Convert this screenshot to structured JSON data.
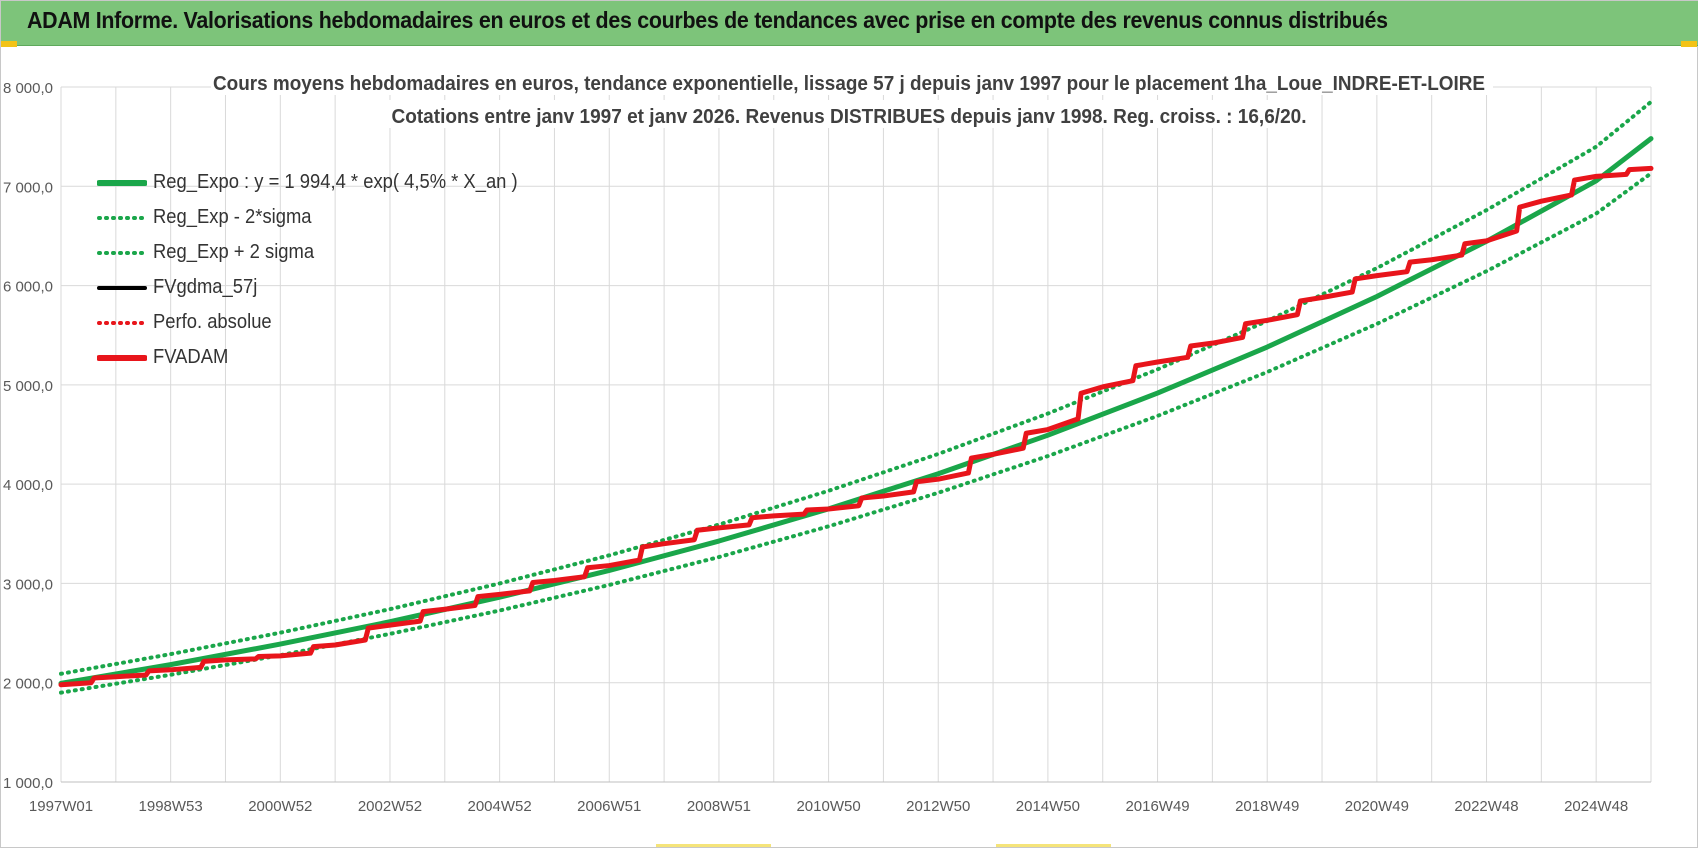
{
  "header": {
    "title": "ADAM Informe. Valorisations hebdomadaires en euros et des courbes de tendances avec prise en compte des revenus connus distribués"
  },
  "chart_data": {
    "type": "line",
    "title": "Cours moyens hebdomadaires en euros, tendance exponentielle, lissage 57 j depuis janv 1997 pour le placement 1ha_Loue_INDRE-ET-LOIRE",
    "subtitle": "Cotations entre janv 1997 et janv 2026. Revenus DISTRIBUES depuis janv 1998. Reg. croiss. : 16,6/20.",
    "xlabel": "",
    "ylabel": "",
    "x_ticks": [
      "1997W01",
      "1998W53",
      "2000W52",
      "2002W52",
      "2004W52",
      "2006W51",
      "2008W51",
      "2010W50",
      "2012W50",
      "2014W50",
      "2016W49",
      "2018W49",
      "2020W49",
      "2022W48",
      "2024W48"
    ],
    "y_ticks": [
      "1 000,0",
      "2 000,0",
      "3 000,0",
      "4 000,0",
      "5 000,0",
      "6 000,0",
      "7 000,0",
      "8 000,0"
    ],
    "ylim": [
      1000,
      8000
    ],
    "xlim": [
      1997.0,
      2026.0
    ],
    "grid": true,
    "legend_position": "top-left",
    "series": [
      {
        "name": "Reg_Expo : y = 1 994,4 * exp( 4,5% *  X_an )",
        "color": "#1aa64a",
        "style": "solid",
        "x": [
          1997,
          1999,
          2001,
          2003,
          2005,
          2007,
          2009,
          2011,
          2013,
          2015,
          2017,
          2019,
          2021,
          2023,
          2025,
          2026
        ],
        "y": [
          1994,
          2182,
          2389,
          2614,
          2861,
          3131,
          3427,
          3751,
          4105,
          4493,
          4917,
          5381,
          5890,
          6446,
          7055,
          7480
        ]
      },
      {
        "name": "Reg_Exp - 2*sigma",
        "color": "#1aa64a",
        "style": "dotted",
        "x": [
          1997,
          1999,
          2001,
          2003,
          2005,
          2007,
          2009,
          2011,
          2013,
          2015,
          2017,
          2019,
          2021,
          2023,
          2025,
          2026
        ],
        "y": [
          1900,
          2080,
          2277,
          2492,
          2727,
          2985,
          3266,
          3575,
          3913,
          4283,
          4687,
          5129,
          5614,
          6145,
          6725,
          7130
        ]
      },
      {
        "name": "Reg_Exp + 2 sigma",
        "color": "#1aa64a",
        "style": "dotted",
        "x": [
          1997,
          1999,
          2001,
          2003,
          2005,
          2007,
          2009,
          2011,
          2013,
          2015,
          2017,
          2019,
          2021,
          2023,
          2025,
          2026
        ],
        "y": [
          2090,
          2288,
          2504,
          2741,
          3000,
          3283,
          3593,
          3933,
          4304,
          4711,
          5156,
          5643,
          6176,
          6760,
          7398,
          7850
        ]
      },
      {
        "name": "FVgdma_57j",
        "color": "#000000",
        "style": "solid",
        "x": [
          1997,
          1998,
          1999,
          2000,
          2001,
          2002,
          2003,
          2004,
          2005,
          2006,
          2007,
          2008,
          2009,
          2010,
          2011,
          2012,
          2013,
          2014,
          2015,
          2016,
          2017,
          2018,
          2019,
          2020,
          2021,
          2022,
          2023,
          2024,
          2025,
          2026
        ],
        "y": [
          1980,
          2060,
          2130,
          2230,
          2270,
          2380,
          2580,
          2740,
          2890,
          3030,
          3180,
          3400,
          3560,
          3680,
          3750,
          3880,
          4050,
          4300,
          4550,
          4980,
          5230,
          5420,
          5650,
          5880,
          6100,
          6260,
          6450,
          6850,
          7100,
          7180
        ]
      },
      {
        "name": "Perfo. absolue",
        "color": "#e8151b",
        "style": "dotted",
        "x": [],
        "y": []
      },
      {
        "name": "FVADAM",
        "color": "#e8151b",
        "style": "solid",
        "x": [
          1997,
          1998,
          1999,
          2000,
          2001,
          2002,
          2003,
          2004,
          2005,
          2006,
          2007,
          2008,
          2009,
          2010,
          2011,
          2012,
          2013,
          2014,
          2015,
          2016,
          2017,
          2018,
          2019,
          2020,
          2021,
          2022,
          2023,
          2024,
          2025,
          2026
        ],
        "y": [
          1980,
          2060,
          2130,
          2230,
          2270,
          2380,
          2580,
          2740,
          2890,
          3030,
          3180,
          3400,
          3560,
          3680,
          3750,
          3880,
          4050,
          4300,
          4550,
          4980,
          5230,
          5420,
          5650,
          5880,
          6100,
          6260,
          6450,
          6850,
          7100,
          7180
        ]
      }
    ]
  },
  "colors": {
    "header_bg": "#7dc47a",
    "grid": "#d9d9d9",
    "axis_text": "#595959",
    "title_text": "#404040"
  }
}
